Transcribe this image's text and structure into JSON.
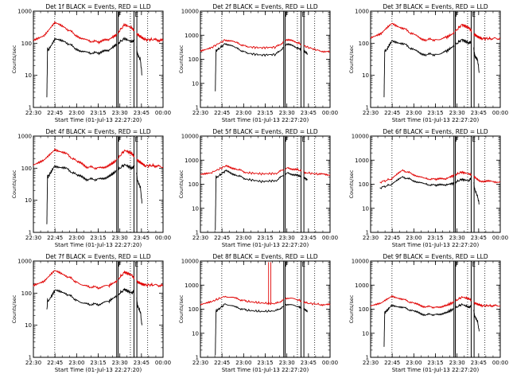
{
  "colors": {
    "events": "#000000",
    "lld": "#e00000",
    "frame": "#000000",
    "background": "#ffffff"
  },
  "common": {
    "xlabel": "Start Time (01-Jul-13 22:27:20)",
    "ylabel": "Counts/sec",
    "x_tick_labels": [
      "22:30",
      "22:45",
      "23:00",
      "23:15",
      "23:30",
      "23:45",
      "00:00"
    ],
    "x_ticks_minutes": [
      2.67,
      17.67,
      32.67,
      47.67,
      62.67,
      77.67,
      92.67
    ],
    "xlim_minutes": [
      2.67,
      92.67
    ]
  },
  "chart_data": [
    {
      "type": "line",
      "yscale": "log",
      "ylim": [
        1,
        1000
      ],
      "title": "Det 1f BLACK = Events, RED = LLD",
      "y_tick_labels": [
        "1",
        "10",
        "100",
        "1000"
      ],
      "gaps": [
        [
          60.5,
          61.5
        ],
        [
          72.5,
          74.5
        ]
      ],
      "dotted_lines": [
        17.5,
        70,
        82
      ],
      "letters": [
        {
          "text": "F",
          "x": 61.5
        },
        {
          "text": "E",
          "x": 73
        }
      ],
      "series": [
        {
          "name": "LLD",
          "color": "#e00000",
          "x": [
            2.67,
            10,
            17.5,
            25,
            33,
            40,
            48,
            55,
            60,
            66,
            71,
            74,
            77,
            80,
            86,
            92.67
          ],
          "y": [
            130,
            180,
            420,
            300,
            170,
            120,
            110,
            130,
            180,
            380,
            300,
            200,
            160,
            130,
            130,
            120
          ]
        },
        {
          "name": "Events",
          "color": "#000000",
          "x": [
            12,
            12.5,
            13,
            17.5,
            25,
            33,
            40,
            48,
            55,
            60,
            66,
            71,
            73.5,
            75,
            77,
            78
          ],
          "y": [
            2,
            70,
            60,
            130,
            110,
            65,
            50,
            50,
            60,
            90,
            140,
            110,
            130,
            45,
            30,
            10
          ]
        }
      ]
    },
    {
      "type": "line",
      "yscale": "log",
      "ylim": [
        1,
        10000
      ],
      "title": "Det 2f BLACK = Events, RED = LLD",
      "y_tick_labels": [
        "1",
        "10",
        "100",
        "1000",
        "10000"
      ],
      "gaps": [
        [
          60.5,
          61.5
        ],
        [
          72.5,
          74.5
        ]
      ],
      "dotted_lines": [
        17.5,
        70,
        82
      ],
      "letters": [
        {
          "text": "F",
          "x": 61.5
        },
        {
          "text": "E",
          "x": 73
        }
      ],
      "series": [
        {
          "name": "LLD",
          "color": "#e00000",
          "x": [
            2.67,
            10,
            20,
            27,
            35,
            45,
            55,
            63,
            70,
            76,
            85,
            92.67
          ],
          "y": [
            220,
            300,
            650,
            500,
            330,
            300,
            320,
            650,
            500,
            330,
            230,
            200
          ]
        },
        {
          "name": "Events",
          "color": "#000000",
          "x": [
            13,
            13.5,
            14,
            20,
            27,
            35,
            45,
            55,
            63,
            70,
            74,
            77
          ],
          "y": [
            5,
            250,
            230,
            460,
            300,
            180,
            150,
            160,
            430,
            300,
            230,
            170
          ]
        }
      ]
    },
    {
      "type": "line",
      "yscale": "log",
      "ylim": [
        1,
        1000
      ],
      "title": "Det 3f BLACK = Events, RED = LLD",
      "y_tick_labels": [
        "1",
        "10",
        "100",
        "1000"
      ],
      "gaps": [
        [
          60.5,
          61.5
        ],
        [
          72.5,
          74.5
        ]
      ],
      "dotted_lines": [
        17.5,
        70,
        82
      ],
      "letters": [
        {
          "text": "F",
          "x": 61.5
        },
        {
          "text": "E",
          "x": 73
        }
      ],
      "series": [
        {
          "name": "LLD",
          "color": "#e00000",
          "x": [
            2.67,
            10,
            17.5,
            25,
            33,
            40,
            48,
            55,
            60,
            66,
            71,
            74,
            77,
            80,
            86,
            92.67
          ],
          "y": [
            140,
            190,
            420,
            300,
            180,
            130,
            130,
            150,
            200,
            380,
            300,
            200,
            160,
            140,
            140,
            140
          ]
        },
        {
          "name": "Events",
          "color": "#000000",
          "x": [
            12,
            12.5,
            13,
            17.5,
            25,
            33,
            40,
            48,
            55,
            60,
            66,
            71,
            73.5,
            75,
            77,
            78
          ],
          "y": [
            2,
            65,
            55,
            120,
            100,
            60,
            45,
            45,
            55,
            80,
            130,
            100,
            120,
            40,
            30,
            12
          ]
        }
      ]
    },
    {
      "type": "line",
      "yscale": "log",
      "ylim": [
        1,
        1000
      ],
      "title": "Det 4f BLACK = Events, RED = LLD",
      "y_tick_labels": [
        "1",
        "10",
        "100",
        "1000"
      ],
      "gaps": [
        [
          60.5,
          61.5
        ],
        [
          72.5,
          74.5
        ]
      ],
      "dotted_lines": [
        17.5,
        70,
        82
      ],
      "letters": [
        {
          "text": "F",
          "x": 61.5
        },
        {
          "text": "E",
          "x": 73
        }
      ],
      "series": [
        {
          "name": "LLD",
          "color": "#e00000",
          "x": [
            2.67,
            10,
            17.5,
            25,
            33,
            40,
            48,
            55,
            60,
            66,
            71,
            74,
            77,
            80,
            86,
            92.67
          ],
          "y": [
            120,
            170,
            400,
            290,
            160,
            110,
            100,
            120,
            170,
            360,
            290,
            190,
            150,
            120,
            120,
            110
          ]
        },
        {
          "name": "Events",
          "color": "#000000",
          "x": [
            12,
            12.5,
            13,
            17.5,
            25,
            33,
            40,
            48,
            55,
            60,
            66,
            71,
            73.5,
            75,
            77,
            78
          ],
          "y": [
            2,
            60,
            55,
            120,
            100,
            60,
            45,
            45,
            55,
            80,
            130,
            100,
            120,
            40,
            25,
            8
          ]
        }
      ]
    },
    {
      "type": "line",
      "yscale": "log",
      "ylim": [
        1,
        10000
      ],
      "title": "Det 5f BLACK = Events, RED = LLD",
      "y_tick_labels": [
        "1",
        "10",
        "100",
        "1000",
        "10000"
      ],
      "gaps": [
        [
          60.5,
          61.5
        ],
        [
          72.5,
          74.5
        ]
      ],
      "dotted_lines": [
        17.5,
        70,
        82
      ],
      "letters": [
        {
          "text": "F",
          "x": 61.5
        },
        {
          "text": "E",
          "x": 73
        }
      ],
      "series": [
        {
          "name": "LLD",
          "color": "#e00000",
          "x": [
            2.67,
            10,
            20,
            27,
            35,
            45,
            55,
            63,
            70,
            76,
            85,
            92.67
          ],
          "y": [
            260,
            300,
            560,
            450,
            300,
            270,
            280,
            480,
            400,
            300,
            260,
            250
          ]
        },
        {
          "name": "Events",
          "color": "#000000",
          "x": [
            13,
            13.5,
            14,
            20,
            27,
            35,
            45,
            55,
            63,
            70,
            74,
            77
          ],
          "y": [
            1.2,
            200,
            190,
            360,
            250,
            160,
            130,
            140,
            300,
            230,
            200,
            150
          ]
        }
      ]
    },
    {
      "type": "line",
      "yscale": "log",
      "ylim": [
        1,
        10000
      ],
      "title": "Det 6f BLACK = Events, RED = LLD",
      "y_tick_labels": [
        "1",
        "10",
        "100",
        "1000",
        "10000"
      ],
      "gaps": [
        [
          60.5,
          61.5
        ],
        [
          72.5,
          74.5
        ]
      ],
      "dotted_lines": [
        17.5,
        70,
        82
      ],
      "letters": [
        {
          "text": "F",
          "x": 61.5
        },
        {
          "text": "E",
          "x": 73
        }
      ],
      "series": [
        {
          "name": "LLD",
          "color": "#e00000",
          "x": [
            9,
            17.5,
            25,
            33,
            40,
            48,
            55,
            60,
            66,
            71,
            74,
            78,
            85,
            92.67
          ],
          "y": [
            120,
            170,
            380,
            250,
            170,
            160,
            170,
            230,
            320,
            270,
            220,
            140,
            130,
            125
          ]
        },
        {
          "name": "Events",
          "color": "#000000",
          "x": [
            9,
            17.5,
            25,
            33,
            40,
            48,
            55,
            60,
            66,
            71,
            73.5,
            75,
            77,
            78
          ],
          "y": [
            70,
            100,
            200,
            140,
            100,
            90,
            95,
            110,
            160,
            140,
            230,
            60,
            30,
            15
          ]
        }
      ]
    },
    {
      "type": "line",
      "yscale": "log",
      "ylim": [
        1,
        1000
      ],
      "title": "Det 7f BLACK = Events, RED = LLD",
      "y_tick_labels": [
        "1",
        "10",
        "100",
        "1000"
      ],
      "gaps": [
        [
          60.5,
          61.5
        ],
        [
          72.5,
          74.5
        ]
      ],
      "dotted_lines": [
        17.5,
        70,
        82
      ],
      "letters": [
        {
          "text": "F",
          "x": 61.5
        },
        {
          "text": "E",
          "x": 73
        }
      ],
      "series": [
        {
          "name": "LLD",
          "color": "#e00000",
          "x": [
            2.67,
            10,
            17.5,
            25,
            33,
            40,
            48,
            55,
            60,
            66,
            71,
            74,
            77,
            80,
            86,
            92.67
          ],
          "y": [
            180,
            240,
            480,
            360,
            220,
            160,
            150,
            170,
            230,
            450,
            360,
            240,
            200,
            180,
            180,
            170
          ]
        },
        {
          "name": "Events",
          "color": "#000000",
          "x": [
            12,
            12.5,
            13,
            17.5,
            25,
            33,
            40,
            48,
            55,
            60,
            66,
            71,
            73.5,
            75,
            77,
            78
          ],
          "y": [
            30,
            60,
            55,
            120,
            100,
            60,
            45,
            45,
            55,
            80,
            130,
            100,
            130,
            40,
            25,
            10
          ]
        }
      ]
    },
    {
      "type": "line",
      "yscale": "log",
      "ylim": [
        1,
        10000
      ],
      "title": "Det 8f BLACK = Events, RED = LLD",
      "y_tick_labels": [
        "1",
        "10",
        "100",
        "1000",
        "10000"
      ],
      "gaps": [
        [
          60.5,
          61.5
        ],
        [
          72.5,
          74.5
        ]
      ],
      "dotted_lines": [
        17.5,
        70,
        82
      ],
      "letters": [
        {
          "text": "F",
          "x": 61.5
        },
        {
          "text": "E",
          "x": 73
        }
      ],
      "spikes": [
        {
          "x": 50,
          "y": 9000,
          "color": "#e00000"
        },
        {
          "x": 51.5,
          "y": 9000,
          "color": "#e00000"
        }
      ],
      "series": [
        {
          "name": "LLD",
          "color": "#e00000",
          "x": [
            2.67,
            10,
            20,
            27,
            35,
            45,
            55,
            63,
            70,
            76,
            85,
            92.67
          ],
          "y": [
            150,
            200,
            350,
            280,
            210,
            180,
            170,
            290,
            250,
            180,
            160,
            150
          ]
        },
        {
          "name": "Events",
          "color": "#000000",
          "x": [
            13,
            13.5,
            14,
            20,
            27,
            35,
            45,
            55,
            63,
            70,
            74,
            77
          ],
          "y": [
            1.2,
            90,
            85,
            170,
            120,
            90,
            80,
            85,
            160,
            130,
            110,
            80
          ]
        }
      ]
    },
    {
      "type": "line",
      "yscale": "log",
      "ylim": [
        1,
        10000
      ],
      "title": "Det 9f BLACK = Events, RED = LLD",
      "y_tick_labels": [
        "1",
        "10",
        "100",
        "1000",
        "10000"
      ],
      "gaps": [
        [
          60.5,
          61.5
        ],
        [
          72.5,
          74.5
        ]
      ],
      "dotted_lines": [
        17.5,
        70,
        82
      ],
      "letters": [
        {
          "text": "F",
          "x": 61.5
        },
        {
          "text": "E",
          "x": 73
        }
      ],
      "series": [
        {
          "name": "LLD",
          "color": "#e00000",
          "x": [
            2.67,
            10,
            17.5,
            25,
            33,
            40,
            48,
            55,
            60,
            66,
            71,
            74,
            77,
            80,
            86,
            92.67
          ],
          "y": [
            130,
            170,
            360,
            260,
            170,
            130,
            120,
            140,
            190,
            320,
            270,
            190,
            160,
            140,
            140,
            140
          ]
        },
        {
          "name": "Events",
          "color": "#000000",
          "x": [
            12,
            12.5,
            13,
            17.5,
            25,
            33,
            40,
            48,
            55,
            60,
            66,
            71,
            73.5,
            75,
            77,
            78
          ],
          "y": [
            3,
            80,
            75,
            150,
            120,
            80,
            60,
            60,
            70,
            100,
            160,
            120,
            150,
            50,
            30,
            12
          ]
        }
      ]
    }
  ]
}
